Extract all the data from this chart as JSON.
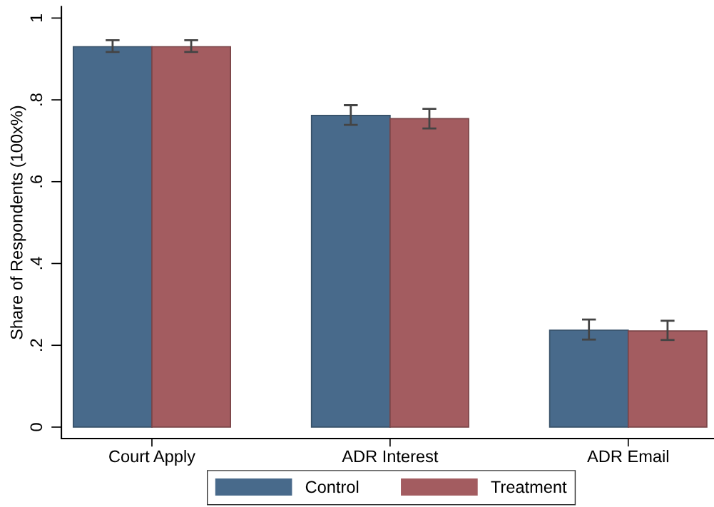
{
  "chart_data": {
    "type": "bar",
    "ylabel": "Share of Respondents (100x%)",
    "categories": [
      "Court Apply",
      "ADR Interest",
      "ADR Email"
    ],
    "series": [
      {
        "name": "Control",
        "color": "#486a8b",
        "values": [
          0.93,
          0.762,
          0.237
        ],
        "errors": [
          [
            0.917,
            0.946
          ],
          [
            0.739,
            0.787
          ],
          [
            0.214,
            0.263
          ]
        ]
      },
      {
        "name": "Treatment",
        "color": "#a35c60",
        "values": [
          0.93,
          0.754,
          0.235
        ],
        "errors": [
          [
            0.917,
            0.946
          ],
          [
            0.73,
            0.778
          ],
          [
            0.213,
            0.26
          ]
        ]
      }
    ],
    "ylim": [
      -0.028,
      1.028
    ],
    "yticks": [
      {
        "value": 0,
        "label": "0"
      },
      {
        "value": 0.2,
        "label": ".2"
      },
      {
        "value": 0.4,
        "label": ".4"
      },
      {
        "value": 0.6,
        "label": ".6"
      },
      {
        "value": 0.8,
        "label": ".8"
      },
      {
        "value": 1,
        "label": "1"
      }
    ],
    "grid": false,
    "legend": "bottom"
  }
}
